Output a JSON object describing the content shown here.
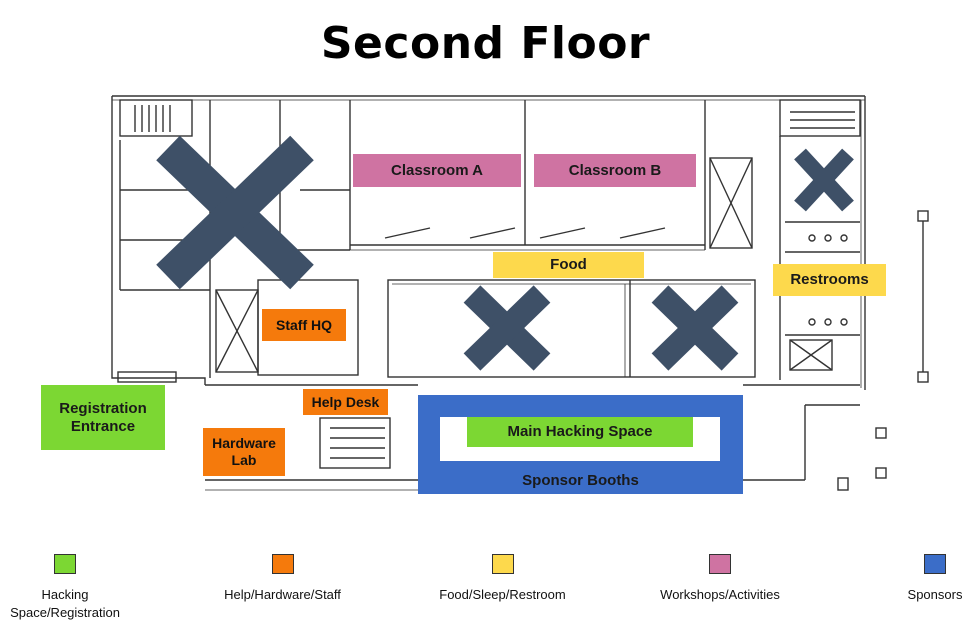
{
  "title": "Second Floor",
  "labels": {
    "classroom_a": "Classroom A",
    "classroom_b": "Classroom B",
    "food": "Food",
    "restrooms": "Restrooms",
    "staff_hq": "Staff HQ",
    "help_desk": "Help Desk",
    "hardware_lab": "Hardware Lab",
    "registration": "Registration Entrance",
    "main_hacking": "Main Hacking Space",
    "sponsor_booths": "Sponsor Booths"
  },
  "legend": [
    {
      "label": "Hacking Space/Registration",
      "color": "#7cd733"
    },
    {
      "label": "Help/Hardware/Staff",
      "color": "#f57a0c"
    },
    {
      "label": "Food/Sleep/Restroom",
      "color": "#fdd94c"
    },
    {
      "label": "Workshops/Activities",
      "color": "#cf73a2"
    },
    {
      "label": "Sponsors",
      "color": "#3b6dc8"
    }
  ],
  "colors": {
    "blocked": "#3e5067",
    "workshops": "#cf73a2",
    "food": "#fdd94c",
    "staff": "#f57a0c",
    "hacking": "#7cd733",
    "sponsors": "#3b6dc8"
  },
  "icons": [
    "closed-area-x-icon"
  ]
}
